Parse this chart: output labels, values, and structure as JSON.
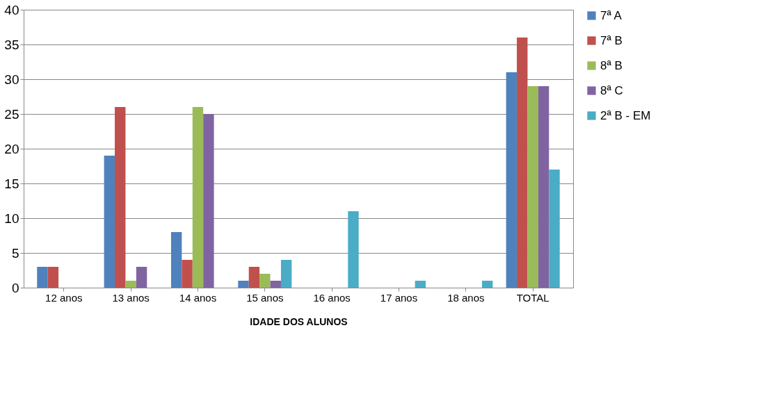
{
  "chart_data": {
    "type": "bar",
    "xlabel": "IDADE DOS ALUNOS",
    "categories": [
      "12 anos",
      "13 anos",
      "14 anos",
      "15 anos",
      "16 anos",
      "17 anos",
      "18 anos",
      "TOTAL"
    ],
    "series": [
      {
        "name": "7ª A",
        "color": "#4f81bd",
        "values": [
          3,
          19,
          8,
          1,
          0,
          0,
          0,
          31
        ]
      },
      {
        "name": "7ª B",
        "color": "#c0504d",
        "values": [
          3,
          26,
          4,
          3,
          0,
          0,
          0,
          36
        ]
      },
      {
        "name": "8ª B",
        "color": "#9bbb59",
        "values": [
          0,
          1,
          26,
          2,
          0,
          0,
          0,
          29
        ]
      },
      {
        "name": "8ª C",
        "color": "#8064a2",
        "values": [
          0,
          3,
          25,
          1,
          0,
          0,
          0,
          29
        ]
      },
      {
        "name": "2ª B - EM",
        "color": "#4bacc6",
        "values": [
          0,
          0,
          0,
          4,
          11,
          1,
          1,
          17
        ]
      }
    ],
    "ylim": [
      0,
      40
    ],
    "yticks": [
      0,
      5,
      10,
      15,
      20,
      25,
      30,
      35,
      40
    ],
    "grid": "y",
    "legend": "right"
  }
}
